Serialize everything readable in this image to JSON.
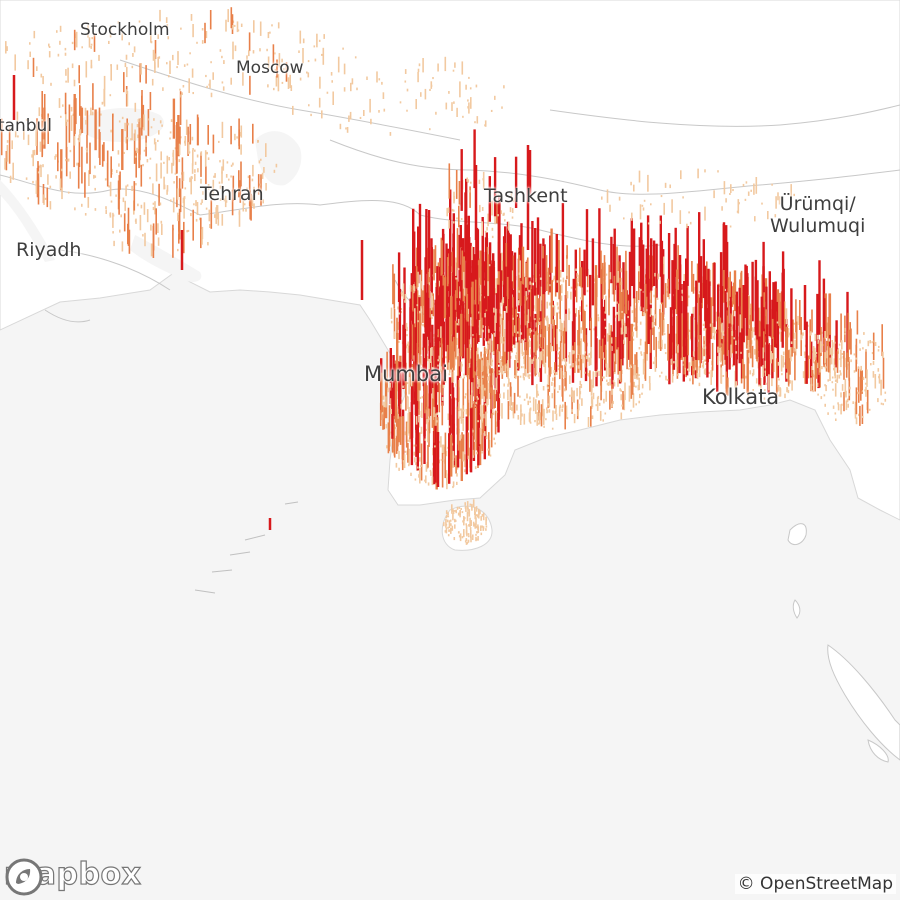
{
  "map": {
    "cities": [
      {
        "id": "stockholm",
        "name": "Stockholm"
      },
      {
        "id": "moscow",
        "name": "Moscow"
      },
      {
        "id": "istanbul",
        "name": "Istanbul"
      },
      {
        "id": "tehran",
        "name": "Tehran"
      },
      {
        "id": "riyadh",
        "name": "Riyadh"
      },
      {
        "id": "tashkent",
        "name": "Tashkent"
      },
      {
        "id": "urumqi",
        "name": "Ürümqi/\nWulumuqi"
      },
      {
        "id": "mumbai",
        "name": "Mumbai"
      },
      {
        "id": "kolkata",
        "name": "Kolkata"
      }
    ],
    "colors": {
      "water": "#f5f5f5",
      "land": "#ffffff",
      "border": "#c8c8c8",
      "spike_low": "#f2c9a0",
      "spike_mid": "#e8804a",
      "spike_high": "#d7191c"
    }
  },
  "logo": {
    "text": "mapbox",
    "icon": "mapbox-logo-icon"
  },
  "attribution": {
    "text": "© OpenStreetMap"
  }
}
